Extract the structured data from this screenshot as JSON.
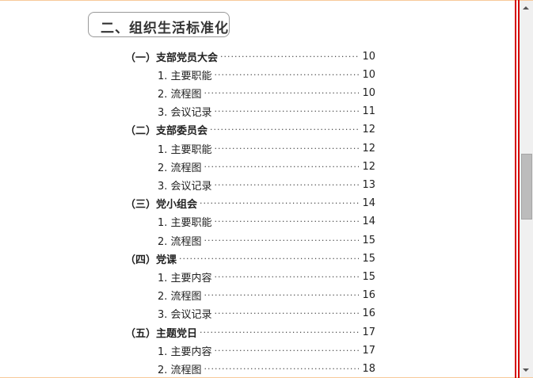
{
  "section_title": "二、组织生活标准化",
  "toc": [
    {
      "label": "（一）支部党员大会",
      "page": "10",
      "level": 1
    },
    {
      "label": "1. 主要职能",
      "page": "10",
      "level": 2
    },
    {
      "label": "2. 流程图",
      "page": "10",
      "level": 2
    },
    {
      "label": "3. 会议记录",
      "page": "11",
      "level": 2
    },
    {
      "label": "（二）支部委员会",
      "page": "12",
      "level": 1
    },
    {
      "label": "1. 主要职能",
      "page": "12",
      "level": 2
    },
    {
      "label": "2. 流程图",
      "page": "12",
      "level": 2
    },
    {
      "label": "3. 会议记录",
      "page": "13",
      "level": 2
    },
    {
      "label": "（三）党小组会",
      "page": "14",
      "level": 1
    },
    {
      "label": "1. 主要职能",
      "page": "14",
      "level": 2
    },
    {
      "label": "2. 流程图",
      "page": "15",
      "level": 2
    },
    {
      "label": "（四）党课",
      "page": "15",
      "level": 1
    },
    {
      "label": "1. 主要内容",
      "page": "15",
      "level": 2
    },
    {
      "label": "2. 流程图",
      "page": "16",
      "level": 2
    },
    {
      "label": "3. 会议记录",
      "page": "16",
      "level": 2
    },
    {
      "label": "（五）主题党日",
      "page": "17",
      "level": 1
    },
    {
      "label": "1. 主要内容",
      "page": "17",
      "level": 2
    },
    {
      "label": "2. 流程图",
      "page": "18",
      "level": 2
    }
  ],
  "scrollbar": {
    "position_fraction": 0.42
  }
}
